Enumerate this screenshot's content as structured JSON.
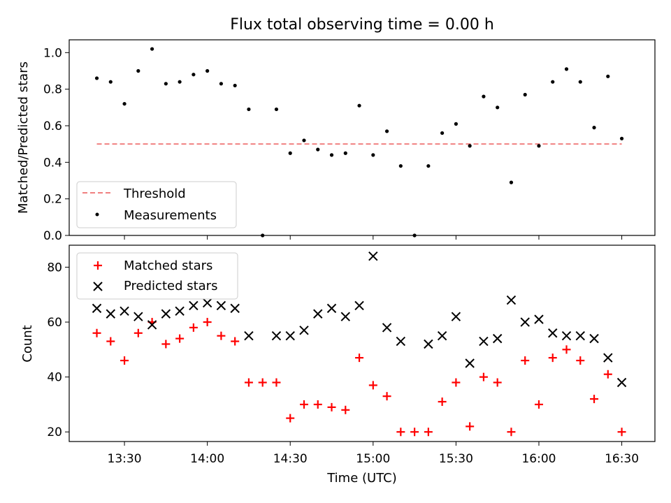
{
  "figure": {
    "title": "Flux total observing time = 0.00 h",
    "background": "#ffffff"
  },
  "chart_data": [
    {
      "type": "scatter",
      "panel": "top",
      "title": "Flux total observing time = 0.00 h",
      "xlabel": "",
      "ylabel": "Matched/Predicted stars",
      "ylim": [
        0.0,
        1.07
      ],
      "yticks": [
        0.0,
        0.2,
        0.4,
        0.6,
        0.8,
        1.0
      ],
      "ytick_labels": [
        "0.0",
        "0.2",
        "0.4",
        "0.6",
        "0.8",
        "1.0"
      ],
      "xlim": [
        "13:10",
        "16:42"
      ],
      "grid": false,
      "legend_position": "lower-left",
      "threshold": {
        "name": "Threshold",
        "value": 0.5,
        "x_range": [
          "13:20",
          "16:30"
        ],
        "style": "dashed",
        "color": "#f08080"
      },
      "series": [
        {
          "name": "Measurements",
          "marker": "dot",
          "color": "#000000",
          "x": [
            "13:20",
            "13:25",
            "13:30",
            "13:35",
            "13:40",
            "13:45",
            "13:50",
            "13:55",
            "14:00",
            "14:05",
            "14:10",
            "14:15",
            "14:20",
            "14:25",
            "14:30",
            "14:35",
            "14:40",
            "14:45",
            "14:50",
            "14:55",
            "15:00",
            "15:05",
            "15:10",
            "15:15",
            "15:20",
            "15:25",
            "15:30",
            "15:35",
            "15:40",
            "15:45",
            "15:50",
            "15:55",
            "16:00",
            "16:05",
            "16:10",
            "16:15",
            "16:20",
            "16:25",
            "16:30"
          ],
          "y": [
            0.86,
            0.84,
            0.72,
            0.9,
            1.02,
            0.83,
            0.84,
            0.88,
            0.9,
            0.83,
            0.82,
            0.69,
            0.0,
            0.69,
            0.45,
            0.52,
            0.47,
            0.44,
            0.45,
            0.71,
            0.44,
            0.57,
            0.38,
            0.0,
            0.38,
            0.56,
            0.61,
            0.49,
            0.76,
            0.7,
            0.29,
            0.77,
            0.49,
            0.84,
            0.91,
            0.84,
            0.59,
            0.87,
            0.53
          ]
        }
      ]
    },
    {
      "type": "scatter",
      "panel": "bottom",
      "title": "",
      "xlabel": "Time (UTC)",
      "ylabel": "Count",
      "ylim": [
        16.5,
        88
      ],
      "yticks": [
        20,
        40,
        60,
        80
      ],
      "ytick_labels": [
        "20",
        "40",
        "60",
        "80"
      ],
      "xlim": [
        "13:10",
        "16:42"
      ],
      "xticks": [
        "13:30",
        "14:00",
        "14:30",
        "15:00",
        "15:30",
        "16:00",
        "16:30"
      ],
      "xtick_labels": [
        "13:30",
        "14:00",
        "14:30",
        "15:00",
        "15:30",
        "16:00",
        "16:30"
      ],
      "grid": false,
      "legend_position": "upper-left",
      "series": [
        {
          "name": "Matched stars",
          "marker": "plus",
          "color": "#ff0000",
          "x": [
            "13:20",
            "13:25",
            "13:30",
            "13:35",
            "13:40",
            "13:45",
            "13:50",
            "13:55",
            "14:00",
            "14:05",
            "14:10",
            "14:15",
            "14:20",
            "14:25",
            "14:30",
            "14:35",
            "14:40",
            "14:45",
            "14:50",
            "14:55",
            "15:00",
            "15:05",
            "15:10",
            "15:15",
            "15:20",
            "15:25",
            "15:30",
            "15:35",
            "15:40",
            "15:45",
            "15:50",
            "15:55",
            "16:00",
            "16:05",
            "16:10",
            "16:15",
            "16:20",
            "16:25",
            "16:30"
          ],
          "y": [
            56,
            53,
            46,
            56,
            60,
            52,
            54,
            58,
            60,
            55,
            53,
            38,
            38,
            38,
            25,
            30,
            30,
            29,
            28,
            47,
            37,
            33,
            20,
            20,
            20,
            31,
            38,
            22,
            40,
            38,
            20,
            46,
            30,
            47,
            50,
            46,
            32,
            41,
            20
          ]
        },
        {
          "name": "Predicted stars",
          "marker": "x",
          "color": "#000000",
          "x": [
            "13:20",
            "13:25",
            "13:30",
            "13:35",
            "13:40",
            "13:45",
            "13:50",
            "13:55",
            "14:00",
            "14:05",
            "14:10",
            "14:15",
            "14:25",
            "14:30",
            "14:35",
            "14:40",
            "14:45",
            "14:50",
            "14:55",
            "15:00",
            "15:05",
            "15:10",
            "15:20",
            "15:25",
            "15:30",
            "15:35",
            "15:40",
            "15:45",
            "15:50",
            "15:55",
            "16:00",
            "16:05",
            "16:10",
            "16:15",
            "16:20",
            "16:25",
            "16:30"
          ],
          "y": [
            65,
            63,
            64,
            62,
            59,
            63,
            64,
            66,
            67,
            66,
            65,
            55,
            55,
            55,
            57,
            63,
            65,
            62,
            66,
            84,
            58,
            53,
            52,
            55,
            62,
            45,
            53,
            54,
            68,
            60,
            61,
            56,
            55,
            55,
            54,
            47,
            38
          ]
        }
      ]
    }
  ]
}
